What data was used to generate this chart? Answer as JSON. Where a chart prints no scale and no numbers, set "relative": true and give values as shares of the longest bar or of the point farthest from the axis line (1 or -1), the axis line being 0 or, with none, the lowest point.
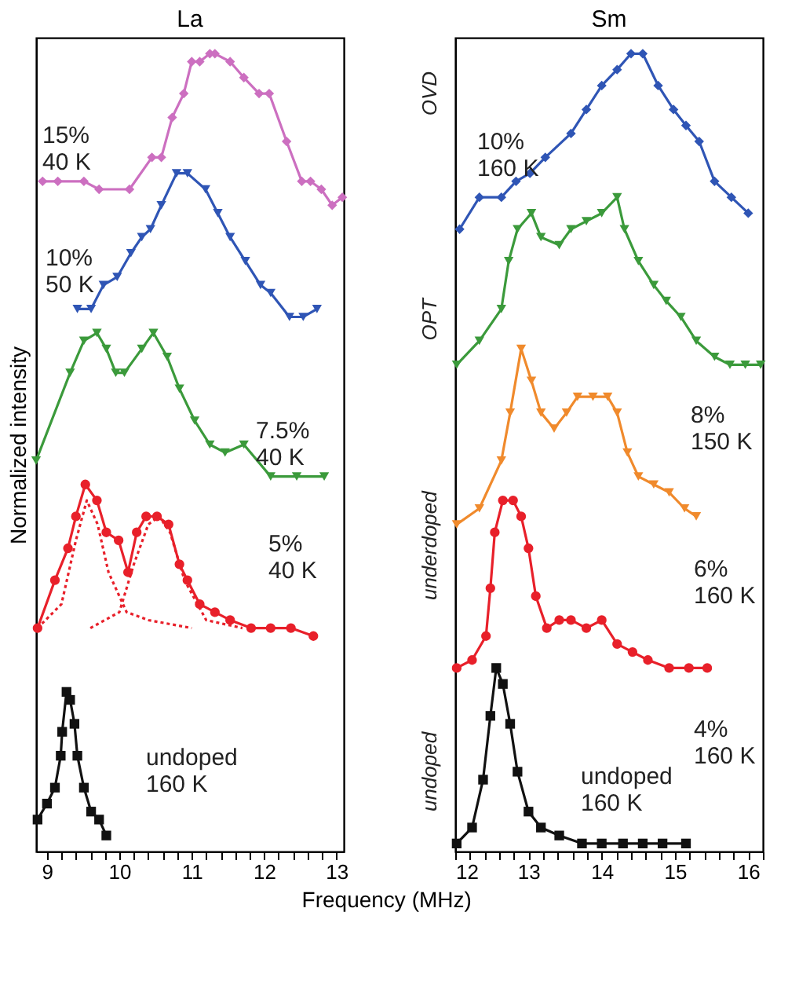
{
  "chart_data": [
    {
      "type": "line",
      "title": "La",
      "ylabel": "Normalized intensity",
      "xlabel": "Frequency (MHz)",
      "relative": true,
      "xlim": [
        8.85,
        13.1
      ],
      "xticks": [
        9,
        {
          "value": 9.2,
          "label": null
        },
        {
          "value": 9.4,
          "label": null
        },
        {
          "value": 9.6,
          "label": null
        },
        {
          "value": 9.8,
          "label": null
        },
        10,
        {
          "value": 10.2,
          "label": null
        },
        {
          "value": 10.4,
          "label": null
        },
        {
          "value": 10.6,
          "label": null
        },
        {
          "value": 10.8,
          "label": null
        },
        11,
        {
          "value": 11.2,
          "label": null
        },
        {
          "value": 11.4,
          "label": null
        },
        {
          "value": 11.6,
          "label": null
        },
        {
          "value": 11.8,
          "label": null
        },
        12,
        {
          "value": 12.2,
          "label": null
        },
        {
          "value": 12.4,
          "label": null
        },
        {
          "value": 12.6,
          "label": null
        },
        {
          "value": 12.8,
          "label": null
        },
        13
      ],
      "series": [
        {
          "name": "15%\n40 K",
          "color": "#cc6fc0",
          "marker": "diamond",
          "x": [
            8.94,
            9.15,
            9.51,
            9.72,
            10.14,
            10.45,
            10.58,
            10.73,
            10.89,
            11.0,
            11.11,
            11.25,
            11.32,
            11.53,
            11.72,
            11.93,
            12.07,
            12.31,
            12.52,
            12.64,
            12.79,
            12.94,
            13.08
          ],
          "values": [
            0.84,
            0.84,
            0.84,
            0.83,
            0.83,
            0.87,
            0.87,
            0.92,
            0.95,
            0.99,
            0.99,
            1.0,
            1.0,
            0.99,
            0.97,
            0.95,
            0.95,
            0.89,
            0.84,
            0.84,
            0.83,
            0.81,
            0.82
          ]
        },
        {
          "name": "10%\n50 K",
          "color": "#2f55b5",
          "marker": "triangle",
          "x": [
            9.42,
            9.61,
            9.78,
            9.97,
            10.16,
            10.31,
            10.43,
            10.58,
            10.79,
            10.94,
            11.19,
            11.36,
            11.53,
            11.74,
            11.95,
            12.09,
            12.35,
            12.54,
            12.73
          ],
          "values": [
            0.68,
            0.68,
            0.71,
            0.72,
            0.75,
            0.77,
            0.78,
            0.81,
            0.85,
            0.85,
            0.83,
            0.8,
            0.77,
            0.74,
            0.71,
            0.7,
            0.67,
            0.67,
            0.68
          ]
        },
        {
          "name": "7.5%\n40 K",
          "color": "#3b9a3b",
          "marker": "triangle",
          "x": [
            8.85,
            9.32,
            9.51,
            9.69,
            9.82,
            9.95,
            10.07,
            10.31,
            10.47,
            10.66,
            10.83,
            11.04,
            11.25,
            11.46,
            11.72,
            12.09,
            12.45,
            12.83
          ],
          "values": [
            0.49,
            0.6,
            0.64,
            0.65,
            0.63,
            0.6,
            0.6,
            0.63,
            0.65,
            0.62,
            0.58,
            0.54,
            0.51,
            0.5,
            0.51,
            0.47,
            0.47,
            0.47
          ]
        },
        {
          "name": "5%\n40 K",
          "color": "#e8202a",
          "marker": "circle",
          "x": [
            8.87,
            9.11,
            9.29,
            9.4,
            9.53,
            9.69,
            9.82,
            9.99,
            10.12,
            10.24,
            10.37,
            10.52,
            10.68,
            10.83,
            10.94,
            11.11,
            11.32,
            11.53,
            11.82,
            12.09,
            12.37,
            12.68
          ],
          "values": [
            0.28,
            0.34,
            0.38,
            0.42,
            0.46,
            0.44,
            0.4,
            0.39,
            0.35,
            0.4,
            0.42,
            0.42,
            0.41,
            0.36,
            0.34,
            0.31,
            0.3,
            0.29,
            0.28,
            0.28,
            0.28,
            0.27
          ]
        },
        {
          "color": "#e8202a",
          "marker": "none",
          "line_style": "dotted",
          "x": [
            8.87,
            9.2,
            9.4,
            9.55,
            9.7,
            9.85,
            10.1,
            10.4,
            11.0
          ],
          "values": [
            0.28,
            0.31,
            0.39,
            0.44,
            0.41,
            0.35,
            0.3,
            0.29,
            0.28
          ]
        },
        {
          "color": "#e8202a",
          "marker": "none",
          "line_style": "dotted",
          "x": [
            9.6,
            10.0,
            10.2,
            10.4,
            10.55,
            10.7,
            10.9,
            11.2,
            11.7
          ],
          "values": [
            0.28,
            0.3,
            0.36,
            0.41,
            0.42,
            0.4,
            0.34,
            0.29,
            0.28
          ]
        },
        {
          "name": "undoped\n160 K",
          "color": "#111111",
          "marker": "square",
          "x": [
            8.87,
            9.0,
            9.11,
            9.19,
            9.21,
            9.27,
            9.32,
            9.38,
            9.42,
            9.51,
            9.61,
            9.72,
            9.82
          ],
          "values": [
            0.04,
            0.06,
            0.08,
            0.12,
            0.15,
            0.2,
            0.19,
            0.16,
            0.12,
            0.08,
            0.05,
            0.04,
            0.02
          ]
        }
      ]
    },
    {
      "type": "line",
      "title": "Sm",
      "relative": true,
      "xlim": [
        12.0,
        16.2
      ],
      "xticks": [
        12,
        {
          "value": 12.2,
          "label": null
        },
        {
          "value": 12.4,
          "label": null
        },
        {
          "value": 12.6,
          "label": null
        },
        {
          "value": 12.8,
          "label": null
        },
        13,
        {
          "value": 13.2,
          "label": null
        },
        {
          "value": 13.4,
          "label": null
        },
        {
          "value": 13.6,
          "label": null
        },
        {
          "value": 13.8,
          "label": null
        },
        14,
        {
          "value": 14.2,
          "label": null
        },
        {
          "value": 14.4,
          "label": null
        },
        {
          "value": 14.6,
          "label": null
        },
        {
          "value": 14.8,
          "label": null
        },
        15,
        {
          "value": 15.2,
          "label": null
        },
        {
          "value": 15.4,
          "label": null
        },
        {
          "value": 15.6,
          "label": null
        },
        {
          "value": 15.8,
          "label": null
        },
        16,
        {
          "value": 16.2,
          "label": null
        }
      ],
      "series": [
        {
          "name": "10%\n160 K",
          "color": "#2f55b5",
          "marker": "diamond",
          "x": [
            12.06,
            12.33,
            12.63,
            12.83,
            13.02,
            13.23,
            13.58,
            13.79,
            14.0,
            14.21,
            14.4,
            14.56,
            14.77,
            14.98,
            15.15,
            15.33,
            15.54,
            15.77,
            16.0
          ],
          "values": [
            0.78,
            0.82,
            0.82,
            0.84,
            0.85,
            0.87,
            0.9,
            0.93,
            0.96,
            0.98,
            1.0,
            1.0,
            0.96,
            0.93,
            0.91,
            0.89,
            0.84,
            0.82,
            0.8
          ]
        },
        {
          "name": "8%\n150 K",
          "color": "#3b9a3b",
          "marker": "triangle",
          "x": [
            12.02,
            12.33,
            12.63,
            12.73,
            12.85,
            13.04,
            13.17,
            13.42,
            13.58,
            13.79,
            14.0,
            14.21,
            14.31,
            14.5,
            14.71,
            14.88,
            15.08,
            15.29,
            15.54,
            15.75,
            15.96,
            16.17
          ],
          "values": [
            0.61,
            0.64,
            0.68,
            0.74,
            0.78,
            0.8,
            0.77,
            0.76,
            0.78,
            0.79,
            0.8,
            0.82,
            0.78,
            0.74,
            0.71,
            0.69,
            0.67,
            0.64,
            0.62,
            0.61,
            0.61,
            0.61
          ]
        },
        {
          "name": "6%\n160 K",
          "color": "#f08a2c",
          "marker": "triangle",
          "x": [
            12.02,
            12.33,
            12.63,
            12.75,
            12.9,
            13.04,
            13.17,
            13.35,
            13.52,
            13.67,
            13.88,
            14.08,
            14.21,
            14.35,
            14.5,
            14.71,
            14.92,
            15.13,
            15.29
          ],
          "values": [
            0.41,
            0.43,
            0.49,
            0.55,
            0.63,
            0.59,
            0.55,
            0.53,
            0.55,
            0.57,
            0.57,
            0.57,
            0.55,
            0.5,
            0.47,
            0.46,
            0.45,
            0.43,
            0.42
          ]
        },
        {
          "name": "4%\n160 K",
          "color": "#e8202a",
          "marker": "circle",
          "x": [
            12.02,
            12.23,
            12.42,
            12.48,
            12.54,
            12.65,
            12.79,
            12.9,
            13.0,
            13.1,
            13.25,
            13.42,
            13.58,
            13.79,
            14.0,
            14.21,
            14.42,
            14.63,
            14.92,
            15.19,
            15.44
          ],
          "values": [
            0.23,
            0.24,
            0.27,
            0.33,
            0.4,
            0.44,
            0.44,
            0.42,
            0.38,
            0.32,
            0.28,
            0.29,
            0.29,
            0.28,
            0.29,
            0.26,
            0.25,
            0.24,
            0.23,
            0.23,
            0.23
          ]
        },
        {
          "name": "undoped\n160 K",
          "color": "#111111",
          "marker": "square",
          "x": [
            12.02,
            12.23,
            12.38,
            12.48,
            12.56,
            12.65,
            12.75,
            12.85,
            13.0,
            13.17,
            13.42,
            13.73,
            14.0,
            14.29,
            14.56,
            14.83,
            15.15
          ],
          "values": [
            0.01,
            0.03,
            0.09,
            0.17,
            0.23,
            0.21,
            0.16,
            0.1,
            0.05,
            0.03,
            0.02,
            0.01,
            0.01,
            0.01,
            0.01,
            0.01,
            0.01
          ]
        }
      ],
      "annotations": [
        "OVD",
        "OPT",
        "underdoped",
        "undoped"
      ]
    }
  ]
}
